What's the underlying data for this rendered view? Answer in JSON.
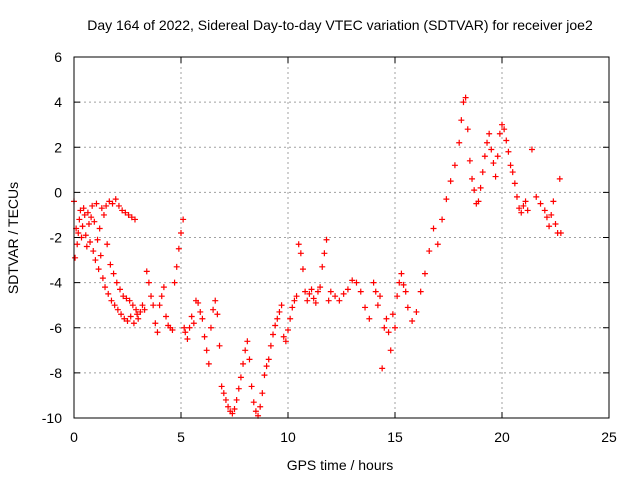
{
  "chart_data": {
    "type": "scatter",
    "title": "Day 164 of 2022, Sidereal Day-to-day VTEC variation (SDTVAR) for receiver joe2",
    "xlabel": "GPS time / hours",
    "ylabel": "SDTVAR / TECUs",
    "xlim": [
      0,
      25
    ],
    "ylim": [
      -10,
      6
    ],
    "xticks": [
      0,
      5,
      10,
      15,
      20,
      25
    ],
    "yticks": [
      -10,
      -8,
      -6,
      -4,
      -2,
      0,
      2,
      4,
      6
    ],
    "xtick_labels": [
      "0",
      "5",
      "10",
      "15",
      "20",
      "25"
    ],
    "ytick_labels": [
      "-10",
      "-8",
      "-6",
      "-4",
      "-2",
      "0",
      "2",
      "4",
      "6"
    ],
    "grid": true,
    "marker": "+",
    "color": "#ff0000",
    "series": [
      {
        "points": [
          [
            0.0,
            -0.4
          ],
          [
            0.05,
            -2.9
          ],
          [
            0.1,
            -1.6
          ],
          [
            0.15,
            -2.3
          ],
          [
            0.2,
            -1.8
          ],
          [
            0.25,
            -1.2
          ],
          [
            0.3,
            -0.8
          ],
          [
            0.35,
            -2.0
          ],
          [
            0.4,
            -1.5
          ],
          [
            0.45,
            -0.7
          ],
          [
            0.5,
            -1.0
          ],
          [
            0.55,
            -1.9
          ],
          [
            0.6,
            -2.4
          ],
          [
            0.65,
            -0.9
          ],
          [
            0.7,
            -1.4
          ],
          [
            0.75,
            -2.2
          ],
          [
            0.8,
            -1.1
          ],
          [
            0.85,
            -0.6
          ],
          [
            0.9,
            -2.6
          ],
          [
            0.95,
            -1.3
          ],
          [
            1.0,
            -3.0
          ],
          [
            1.05,
            -0.5
          ],
          [
            1.1,
            -2.1
          ],
          [
            1.15,
            -3.4
          ],
          [
            1.2,
            -1.6
          ],
          [
            1.25,
            -2.8
          ],
          [
            1.3,
            -0.7
          ],
          [
            1.35,
            -3.8
          ],
          [
            1.4,
            -1.0
          ],
          [
            1.45,
            -4.2
          ],
          [
            1.5,
            -0.6
          ],
          [
            1.55,
            -2.3
          ],
          [
            1.6,
            -4.5
          ],
          [
            1.65,
            -0.4
          ],
          [
            1.7,
            -3.2
          ],
          [
            1.75,
            -4.8
          ],
          [
            1.8,
            -0.5
          ],
          [
            1.85,
            -3.6
          ],
          [
            1.9,
            -5.0
          ],
          [
            1.95,
            -0.3
          ],
          [
            2.0,
            -4.0
          ],
          [
            2.05,
            -5.2
          ],
          [
            2.1,
            -0.6
          ],
          [
            2.15,
            -4.3
          ],
          [
            2.2,
            -5.4
          ],
          [
            2.25,
            -0.8
          ],
          [
            2.3,
            -4.6
          ],
          [
            2.35,
            -5.6
          ],
          [
            2.4,
            -0.9
          ],
          [
            2.45,
            -4.7
          ],
          [
            2.5,
            -5.7
          ],
          [
            2.55,
            -1.0
          ],
          [
            2.6,
            -4.8
          ],
          [
            2.65,
            -5.5
          ],
          [
            2.7,
            -1.1
          ],
          [
            2.75,
            -5.0
          ],
          [
            2.8,
            -5.8
          ],
          [
            2.85,
            -1.2
          ],
          [
            2.9,
            -5.2
          ],
          [
            2.95,
            -5.4
          ],
          [
            3.0,
            -5.6
          ],
          [
            3.1,
            -5.3
          ],
          [
            3.2,
            -5.0
          ],
          [
            3.3,
            -5.2
          ],
          [
            3.4,
            -3.5
          ],
          [
            3.5,
            -4.0
          ],
          [
            3.6,
            -4.6
          ],
          [
            3.7,
            -5.0
          ],
          [
            3.8,
            -5.8
          ],
          [
            3.9,
            -6.2
          ],
          [
            4.0,
            -5.0
          ],
          [
            4.1,
            -4.6
          ],
          [
            4.2,
            -4.2
          ],
          [
            4.3,
            -5.5
          ],
          [
            4.4,
            -5.9
          ],
          [
            4.5,
            -6.0
          ],
          [
            4.6,
            -6.1
          ],
          [
            4.7,
            -4.0
          ],
          [
            4.8,
            -3.3
          ],
          [
            4.9,
            -2.5
          ],
          [
            5.0,
            -1.8
          ],
          [
            5.1,
            -1.2
          ],
          [
            5.15,
            -6.0
          ],
          [
            5.2,
            -6.2
          ],
          [
            5.3,
            -6.5
          ],
          [
            5.4,
            -6.0
          ],
          [
            5.5,
            -5.5
          ],
          [
            5.6,
            -5.8
          ],
          [
            5.7,
            -4.8
          ],
          [
            5.8,
            -4.9
          ],
          [
            5.9,
            -5.3
          ],
          [
            6.0,
            -5.6
          ],
          [
            6.1,
            -6.4
          ],
          [
            6.2,
            -7.0
          ],
          [
            6.3,
            -7.6
          ],
          [
            6.4,
            -6.0
          ],
          [
            6.5,
            -5.2
          ],
          [
            6.6,
            -4.8
          ],
          [
            6.7,
            -5.4
          ],
          [
            6.8,
            -6.8
          ],
          [
            6.9,
            -8.6
          ],
          [
            7.0,
            -8.9
          ],
          [
            7.1,
            -9.2
          ],
          [
            7.2,
            -9.5
          ],
          [
            7.3,
            -9.7
          ],
          [
            7.4,
            -9.8
          ],
          [
            7.5,
            -9.6
          ],
          [
            7.6,
            -9.2
          ],
          [
            7.7,
            -8.7
          ],
          [
            7.8,
            -8.2
          ],
          [
            7.9,
            -7.6
          ],
          [
            8.0,
            -7.0
          ],
          [
            8.1,
            -6.6
          ],
          [
            8.2,
            -7.4
          ],
          [
            8.3,
            -8.6
          ],
          [
            8.4,
            -9.3
          ],
          [
            8.5,
            -9.7
          ],
          [
            8.6,
            -9.9
          ],
          [
            8.7,
            -9.5
          ],
          [
            8.8,
            -8.9
          ],
          [
            8.9,
            -8.1
          ],
          [
            9.0,
            -7.7
          ],
          [
            9.1,
            -7.4
          ],
          [
            9.2,
            -6.8
          ],
          [
            9.3,
            -6.3
          ],
          [
            9.4,
            -5.9
          ],
          [
            9.5,
            -5.6
          ],
          [
            9.6,
            -5.3
          ],
          [
            9.7,
            -5.0
          ],
          [
            9.8,
            -6.4
          ],
          [
            9.9,
            -6.6
          ],
          [
            10.0,
            -6.1
          ],
          [
            10.1,
            -5.6
          ],
          [
            10.2,
            -5.1
          ],
          [
            10.3,
            -4.8
          ],
          [
            10.4,
            -4.6
          ],
          [
            10.5,
            -2.3
          ],
          [
            10.6,
            -2.7
          ],
          [
            10.7,
            -3.4
          ],
          [
            10.8,
            -4.4
          ],
          [
            10.9,
            -4.8
          ],
          [
            11.0,
            -4.5
          ],
          [
            11.1,
            -4.3
          ],
          [
            11.2,
            -4.7
          ],
          [
            11.3,
            -4.9
          ],
          [
            11.4,
            -4.4
          ],
          [
            11.5,
            -4.2
          ],
          [
            11.6,
            -3.3
          ],
          [
            11.7,
            -2.7
          ],
          [
            11.8,
            -2.1
          ],
          [
            11.9,
            -4.8
          ],
          [
            12.0,
            -4.4
          ],
          [
            12.2,
            -4.6
          ],
          [
            12.4,
            -4.8
          ],
          [
            12.6,
            -4.5
          ],
          [
            12.8,
            -4.3
          ],
          [
            13.0,
            -3.9
          ],
          [
            13.2,
            -4.0
          ],
          [
            13.4,
            -4.4
          ],
          [
            13.6,
            -5.1
          ],
          [
            13.8,
            -5.6
          ],
          [
            14.0,
            -4.0
          ],
          [
            14.1,
            -4.4
          ],
          [
            14.2,
            -5.0
          ],
          [
            14.3,
            -4.6
          ],
          [
            14.4,
            -7.8
          ],
          [
            14.5,
            -6.0
          ],
          [
            14.6,
            -5.6
          ],
          [
            14.7,
            -6.2
          ],
          [
            14.8,
            -7.0
          ],
          [
            14.9,
            -5.4
          ],
          [
            15.0,
            -6.0
          ],
          [
            15.1,
            -4.6
          ],
          [
            15.2,
            -4.0
          ],
          [
            15.3,
            -3.6
          ],
          [
            15.4,
            -4.1
          ],
          [
            15.5,
            -4.4
          ],
          [
            15.6,
            -5.1
          ],
          [
            15.8,
            -5.7
          ],
          [
            16.0,
            -5.3
          ],
          [
            16.2,
            -4.4
          ],
          [
            16.4,
            -3.6
          ],
          [
            16.6,
            -2.6
          ],
          [
            16.8,
            -1.6
          ],
          [
            17.0,
            -2.3
          ],
          [
            17.2,
            -1.2
          ],
          [
            17.4,
            -0.3
          ],
          [
            17.6,
            0.5
          ],
          [
            17.8,
            1.2
          ],
          [
            18.0,
            2.2
          ],
          [
            18.1,
            3.2
          ],
          [
            18.2,
            4.0
          ],
          [
            18.3,
            4.2
          ],
          [
            18.4,
            2.8
          ],
          [
            18.5,
            1.4
          ],
          [
            18.6,
            0.6
          ],
          [
            18.7,
            0.1
          ],
          [
            18.8,
            -0.5
          ],
          [
            18.9,
            -0.4
          ],
          [
            19.0,
            0.2
          ],
          [
            19.1,
            0.9
          ],
          [
            19.2,
            1.6
          ],
          [
            19.3,
            2.2
          ],
          [
            19.4,
            2.6
          ],
          [
            19.5,
            1.9
          ],
          [
            19.6,
            1.3
          ],
          [
            19.7,
            0.7
          ],
          [
            19.8,
            1.6
          ],
          [
            19.9,
            2.6
          ],
          [
            20.0,
            3.0
          ],
          [
            20.1,
            2.8
          ],
          [
            20.2,
            2.3
          ],
          [
            20.3,
            1.8
          ],
          [
            20.4,
            1.2
          ],
          [
            20.5,
            0.9
          ],
          [
            20.6,
            0.4
          ],
          [
            20.7,
            -0.2
          ],
          [
            20.8,
            -0.7
          ],
          [
            20.9,
            -0.9
          ],
          [
            21.0,
            -0.6
          ],
          [
            21.1,
            -0.4
          ],
          [
            21.2,
            -0.8
          ],
          [
            21.4,
            1.9
          ],
          [
            21.6,
            -0.2
          ],
          [
            21.8,
            -0.5
          ],
          [
            22.0,
            -0.8
          ],
          [
            22.1,
            -1.1
          ],
          [
            22.2,
            -1.5
          ],
          [
            22.3,
            -1.0
          ],
          [
            22.4,
            -0.4
          ],
          [
            22.5,
            -1.4
          ],
          [
            22.6,
            -1.8
          ],
          [
            22.7,
            0.6
          ],
          [
            22.75,
            -1.8
          ]
        ]
      }
    ]
  }
}
